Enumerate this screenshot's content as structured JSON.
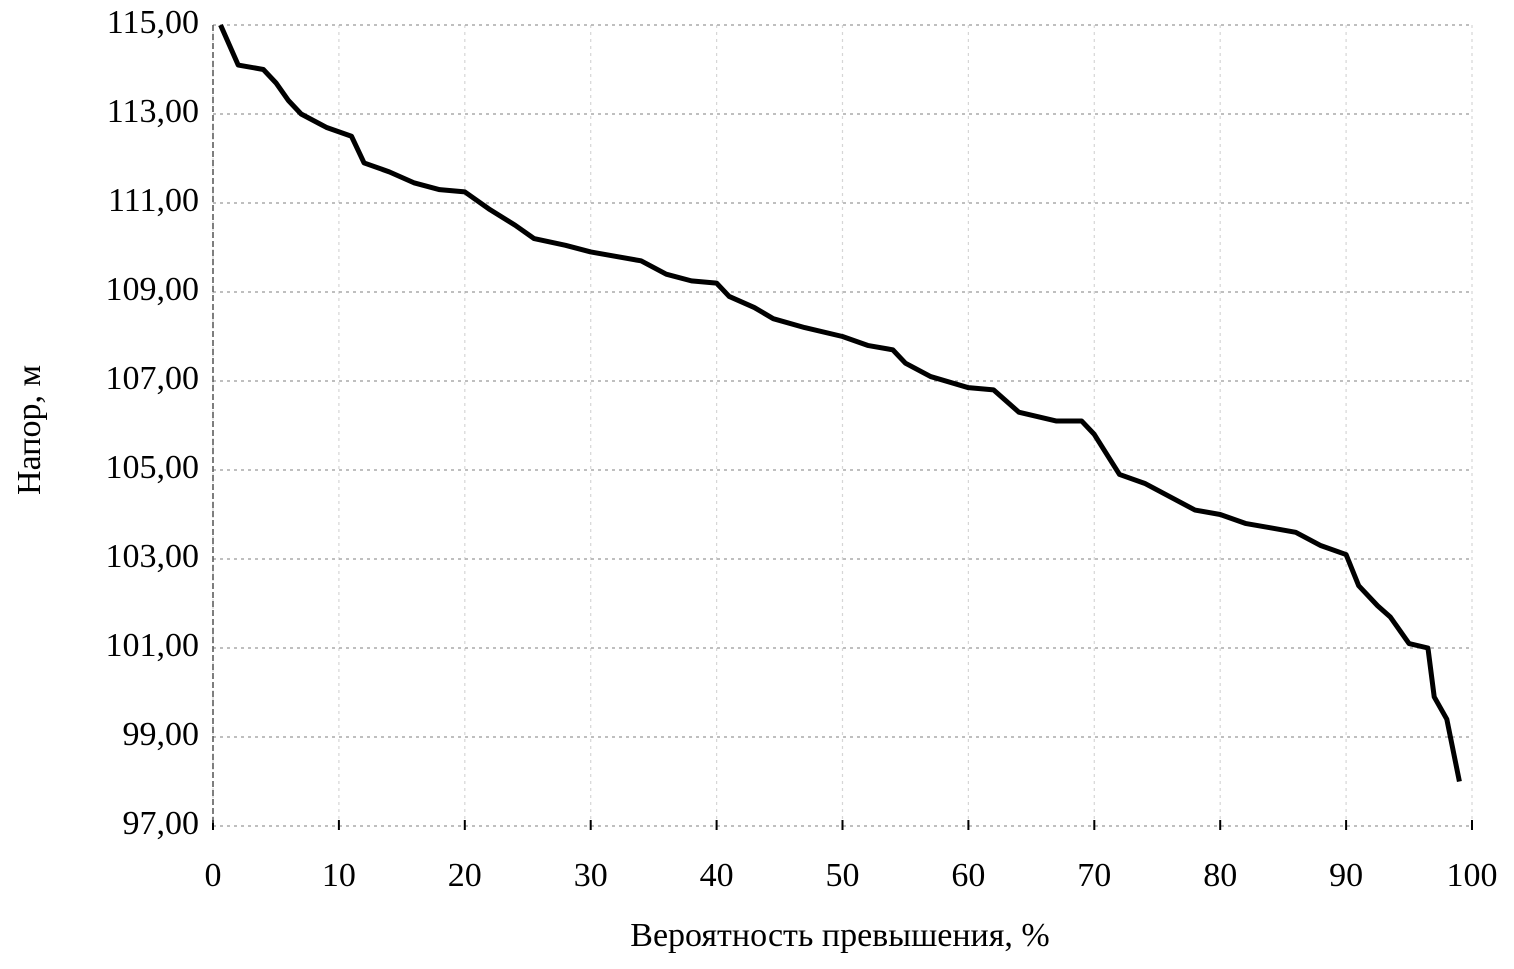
{
  "chart_data": {
    "type": "line",
    "x_label": "Вероятность превышения, %",
    "y_label": "Напор, м",
    "x": [
      0.6,
      2,
      4,
      5,
      6,
      7,
      9,
      11,
      12,
      14,
      16,
      18,
      20,
      22,
      24,
      25.5,
      28,
      30,
      34,
      36,
      38,
      40,
      41,
      43,
      44.5,
      47,
      50,
      52,
      54,
      55,
      57,
      60,
      62,
      64,
      67,
      69,
      70,
      72,
      74,
      76,
      78,
      80,
      82,
      84,
      86,
      88,
      90,
      91,
      92.5,
      93.5,
      95,
      96.5,
      97,
      98,
      99
    ],
    "series": [
      {
        "color": "#000000",
        "values": [
          115.0,
          114.1,
          114.0,
          113.7,
          113.3,
          113.0,
          112.7,
          112.5,
          111.9,
          111.7,
          111.45,
          111.3,
          111.25,
          110.85,
          110.5,
          110.2,
          110.05,
          109.9,
          109.7,
          109.4,
          109.25,
          109.2,
          108.9,
          108.65,
          108.4,
          108.2,
          108.0,
          107.8,
          107.7,
          107.4,
          107.1,
          106.85,
          106.8,
          106.3,
          106.1,
          106.1,
          105.8,
          104.9,
          104.7,
          104.4,
          104.1,
          104.0,
          103.8,
          103.7,
          103.6,
          103.3,
          103.1,
          102.4,
          101.95,
          101.7,
          101.1,
          101.0,
          99.9,
          99.4,
          98.0
        ]
      }
    ],
    "xlim": [
      0,
      100
    ],
    "xticks": [
      0,
      10,
      20,
      30,
      40,
      50,
      60,
      70,
      80,
      90,
      100
    ],
    "ylim": [
      97,
      115
    ],
    "yticks": [
      {
        "value": 97,
        "label": "97,00"
      },
      {
        "value": 99,
        "label": "99,00"
      },
      {
        "value": 101,
        "label": "101,00"
      },
      {
        "value": 103,
        "label": "103,00"
      },
      {
        "value": 105,
        "label": "105,00"
      },
      {
        "value": 107,
        "label": "107,00"
      },
      {
        "value": 109,
        "label": "109,00"
      },
      {
        "value": 111,
        "label": "111,00"
      },
      {
        "value": 113,
        "label": "113,00"
      },
      {
        "value": 115,
        "label": "115,00"
      }
    ],
    "grid": true
  }
}
